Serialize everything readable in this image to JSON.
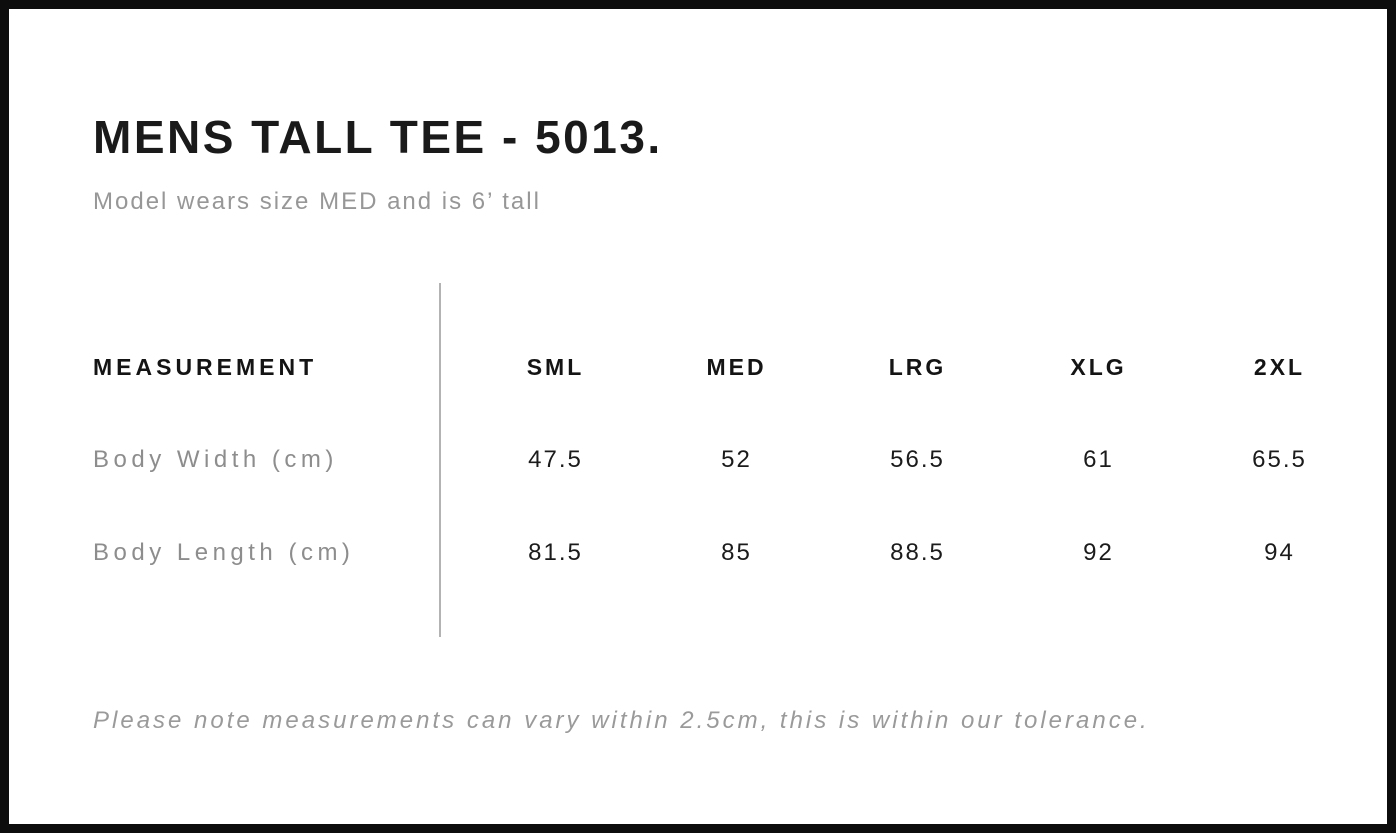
{
  "page": {
    "title": "MENS TALL TEE - 5013.",
    "subtitle": "Model wears size MED and is 6’ tall",
    "footnote": "Please note measurements can vary within 2.5cm, this is within our tolerance."
  },
  "size_table": {
    "label_header": "MEASUREMENT",
    "size_headers": [
      "SML",
      "MED",
      "LRG",
      "XLG",
      "2XL"
    ],
    "rows": [
      {
        "label": "Body Width (cm)",
        "values": [
          "47.5",
          "52",
          "56.5",
          "61",
          "65.5"
        ]
      },
      {
        "label": "Body Length (cm)",
        "values": [
          "81.5",
          "85",
          "88.5",
          "92",
          "94"
        ]
      }
    ]
  },
  "colors": {
    "page_border": "#0d0d0d",
    "heading_text": "#1a1a1a",
    "muted_text": "#979797",
    "row_label_text": "#8d8d8d",
    "value_text": "#1b1b1b",
    "divider": "#b3b3b3",
    "background": "#ffffff"
  }
}
